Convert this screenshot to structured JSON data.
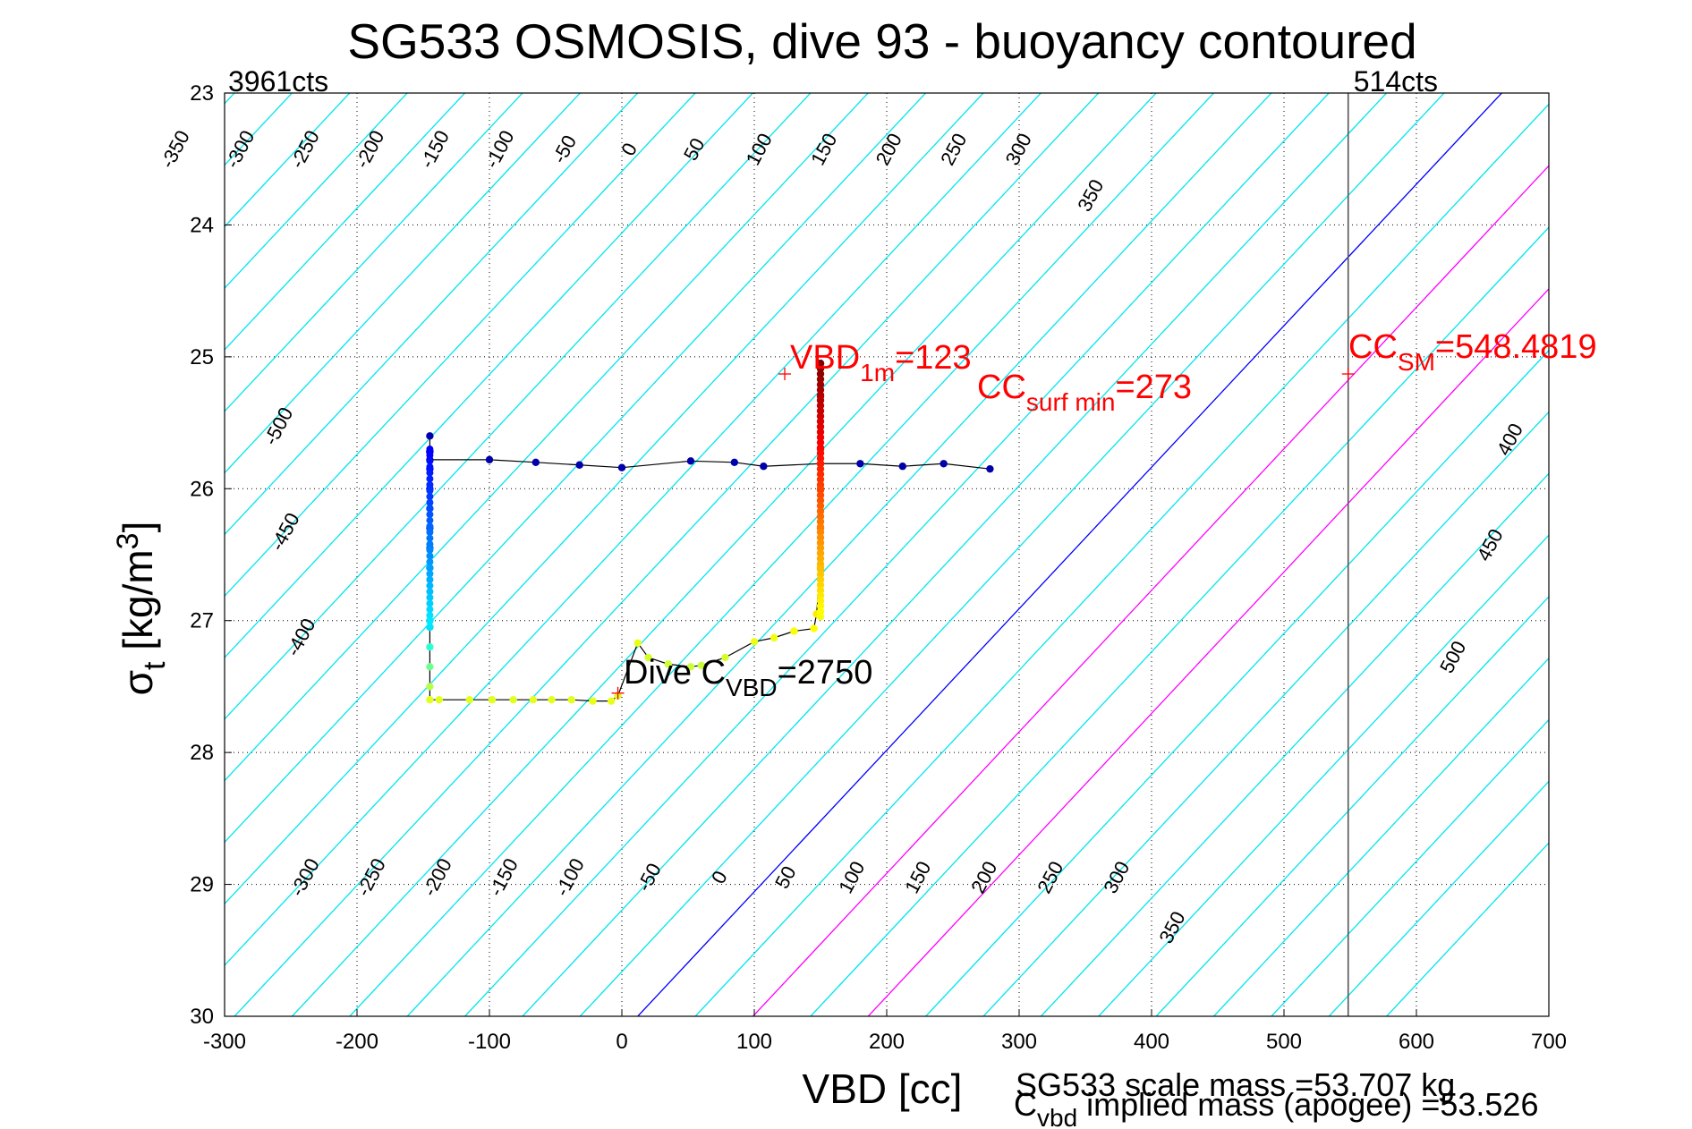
{
  "chart_data": {
    "type": "scatter",
    "title": "SG533 OSMOSIS, dive 93 - buoyancy contoured",
    "xlabel": "VBD [cc]",
    "ylabel": "σt [kg/m3]",
    "ylabel_main": "σ",
    "ylabel_sub": "t",
    "ylabel_rest": " [kg/m",
    "ylabel_sup": "3",
    "ylabel_end": "]",
    "xlim": [
      -300,
      700
    ],
    "ylim": [
      23,
      30
    ],
    "y_reversed": true,
    "grid": true,
    "x_ticks": [
      "-300",
      "-200",
      "-100",
      "0",
      "100",
      "200",
      "300",
      "400",
      "500",
      "600",
      "700"
    ],
    "y_ticks": [
      "23",
      "24",
      "25",
      "26",
      "27",
      "28",
      "29",
      "30"
    ],
    "corner_labels": {
      "left": "3961cts",
      "right": "514cts"
    },
    "contour_colors": {
      "default": "#00e5ee",
      "zero": "#0000ff",
      "highlight": "#ff00ff",
      "limit": "#555555",
      "label": "#000000"
    },
    "contour_labels_top": [
      "-350",
      "-300",
      "-250",
      "-200",
      "-150",
      "-100",
      "-50",
      "0",
      "50",
      "100",
      "150",
      "200",
      "250",
      "300",
      "350"
    ],
    "contour_labels_right": [
      "400",
      "450",
      "500"
    ],
    "contour_labels_left": [
      "-500",
      "-450",
      "-400"
    ],
    "contour_labels_bottom": [
      "-300",
      "-250",
      "-200",
      "-150",
      "-100",
      "-50",
      "0",
      "50",
      "100",
      "150",
      "200",
      "250",
      "300",
      "350"
    ],
    "annotations": {
      "vbd_1m": {
        "main": "VBD",
        "sub": "1m",
        "rest": "=123",
        "x": 123,
        "y": 25.13,
        "color": "#ff0000"
      },
      "cc_surf_min": {
        "main": "CC",
        "sub": "surf min",
        "rest": "=273",
        "x": 273,
        "y": 25.13,
        "color": "#ff0000"
      },
      "cc_sm": {
        "main": "CC",
        "sub": "SM",
        "rest": "=548.4819",
        "x": 548.48,
        "y": 25.13,
        "color": "#ff0000"
      },
      "dive_cvbd": {
        "main": "Dive C",
        "sub": "VBD",
        "rest": "=2750",
        "x": -3,
        "y": 27.55,
        "color": "#000000"
      }
    },
    "footer": {
      "scale_mass": "SG533 scale mass =53.707 kg",
      "implied_main": "C",
      "implied_sub": "vbd",
      "implied_rest": " implied mass (apogee) =53.526"
    },
    "series": [
      {
        "color": "#0000aa",
        "marker_style": "dots",
        "points": [
          [
            -145,
            25.6
          ],
          [
            -145,
            25.72
          ],
          [
            -145,
            25.78
          ],
          [
            -100,
            25.78
          ],
          [
            -65,
            25.8
          ],
          [
            -32,
            25.82
          ],
          [
            0,
            25.84
          ],
          [
            52,
            25.79
          ],
          [
            85,
            25.8
          ],
          [
            107,
            25.83
          ],
          [
            150,
            25.81
          ],
          [
            180,
            25.81
          ],
          [
            212,
            25.83
          ],
          [
            243,
            25.81
          ],
          [
            278,
            25.85
          ]
        ]
      },
      {
        "color": "#0022cc",
        "marker_style": "descent",
        "points": [
          [
            -145,
            25.72
          ],
          [
            -145,
            25.85
          ],
          [
            -145,
            26.0
          ],
          [
            -145,
            26.15
          ],
          [
            -145,
            26.3
          ],
          [
            -145,
            26.45
          ],
          [
            -145,
            26.6
          ],
          [
            -145,
            27.0
          ],
          [
            -145,
            27.05
          ]
        ]
      },
      {
        "color": "#9aee40",
        "marker_style": "bottom",
        "points": [
          [
            -145,
            27.05
          ],
          [
            -145,
            27.2
          ],
          [
            -145,
            27.35
          ],
          [
            -145,
            27.5
          ],
          [
            -145,
            27.6
          ],
          [
            -138,
            27.6
          ],
          [
            -115,
            27.6
          ],
          [
            -98,
            27.6
          ],
          [
            -82,
            27.6
          ],
          [
            -67,
            27.6
          ],
          [
            -53,
            27.6
          ],
          [
            -38,
            27.6
          ],
          [
            -22,
            27.61
          ],
          [
            -8,
            27.61
          ],
          [
            -3,
            27.57
          ]
        ]
      },
      {
        "color": "#c8ee30",
        "marker_style": "ascent",
        "points": [
          [
            12,
            27.17
          ],
          [
            20,
            27.28
          ],
          [
            35,
            27.33
          ],
          [
            52,
            27.35
          ],
          [
            60,
            27.34
          ],
          [
            78,
            27.28
          ],
          [
            100,
            27.16
          ],
          [
            115,
            27.13
          ],
          [
            130,
            27.08
          ],
          [
            145,
            27.06
          ],
          [
            147,
            26.95
          ],
          [
            150,
            26.6
          ],
          [
            150,
            26.3
          ],
          [
            150,
            26.0
          ],
          [
            150,
            25.7
          ],
          [
            150,
            25.3
          ],
          [
            150,
            25.05
          ]
        ]
      }
    ]
  }
}
